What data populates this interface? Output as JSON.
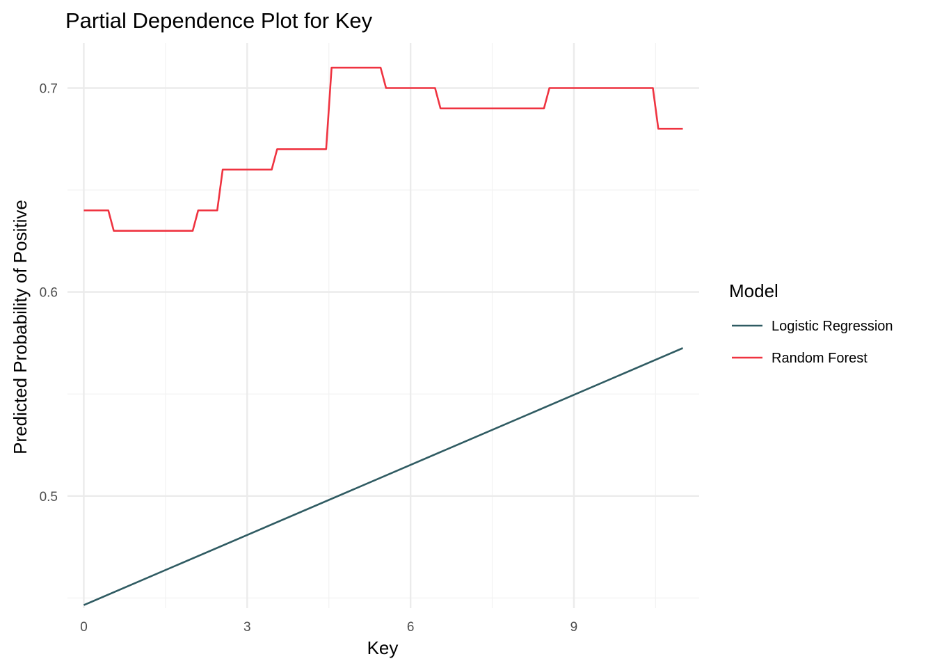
{
  "chart_data": {
    "type": "line",
    "title": "Partial Dependence Plot for Key",
    "xlabel": "Key",
    "ylabel": "Predicted Probability of Positive",
    "xlim": [
      -0.3,
      11.3
    ],
    "ylim": [
      0.445,
      0.722
    ],
    "x_ticks": [
      0,
      3,
      6,
      9
    ],
    "x_tick_labels": [
      "0",
      "3",
      "6",
      "9"
    ],
    "x_minor_ticks": [
      1.5,
      4.5,
      7.5,
      10.5
    ],
    "y_ticks": [
      0.5,
      0.6,
      0.7
    ],
    "y_tick_labels": [
      "0.5",
      "0.6",
      "0.7"
    ],
    "y_minor_ticks": [
      0.45,
      0.55,
      0.65
    ],
    "grid": true,
    "legend": {
      "title": "Model",
      "position": "right"
    },
    "series": [
      {
        "name": "Logistic Regression",
        "color": "#2f5b62",
        "x": [
          0,
          11
        ],
        "y": [
          0.4465,
          0.5725
        ]
      },
      {
        "name": "Random Forest",
        "color": "#ef3340",
        "x": [
          0,
          0.45,
          0.55,
          2.0,
          2.1,
          2.45,
          2.55,
          3.45,
          3.55,
          4.45,
          4.55,
          5.45,
          5.55,
          6.45,
          6.55,
          8.45,
          8.55,
          10.45,
          10.55,
          11
        ],
        "y": [
          0.64,
          0.64,
          0.63,
          0.63,
          0.64,
          0.64,
          0.66,
          0.66,
          0.67,
          0.67,
          0.71,
          0.71,
          0.7,
          0.7,
          0.69,
          0.69,
          0.7,
          0.7,
          0.68,
          0.68
        ]
      }
    ]
  }
}
